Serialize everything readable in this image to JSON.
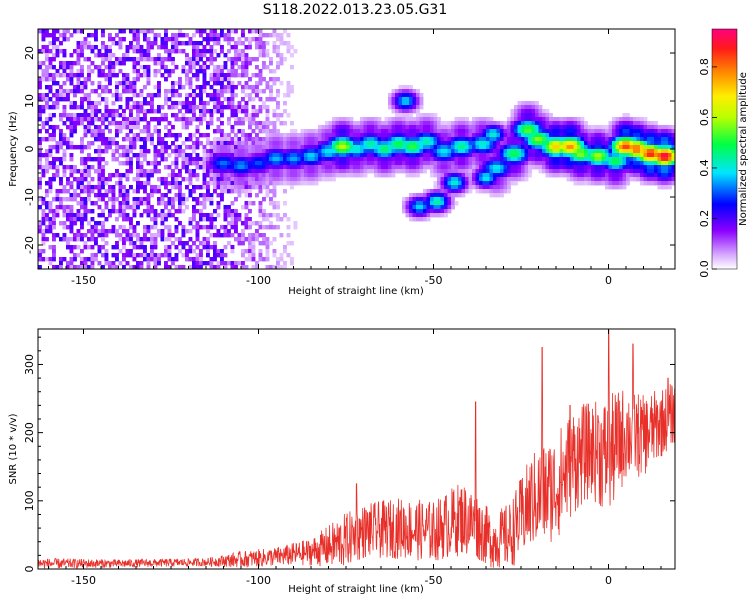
{
  "figure": {
    "title": "S118.2022.013.23.05.G31"
  },
  "colorbar": {
    "label": "Normalized spectral amplitude",
    "range": [
      0,
      0.95
    ],
    "ticks": [
      {
        "value": 0.0,
        "label": "0.0"
      },
      {
        "value": 0.2,
        "label": "0.2"
      },
      {
        "value": 0.4,
        "label": "0.4"
      },
      {
        "value": 0.6,
        "label": "0.6"
      },
      {
        "value": 0.8,
        "label": "0.8"
      }
    ],
    "colormap": "rainbow (white-violet-blue-cyan-green-yellow-orange-red-magenta)"
  },
  "chart_data": [
    {
      "type": "heatmap",
      "title": "",
      "xlabel": "Height of straight line (km)",
      "ylabel": "Frequency (Hz)",
      "xlim": [
        -163,
        19
      ],
      "ylim": [
        -25,
        25
      ],
      "x_ticks": [
        {
          "value": -150,
          "label": "-150"
        },
        {
          "value": -100,
          "label": "-100"
        },
        {
          "value": -50,
          "label": "-50"
        },
        {
          "value": 0,
          "label": "0"
        }
      ],
      "y_ticks": [
        {
          "value": -20,
          "label": "-20"
        },
        {
          "value": -10,
          "label": "-10"
        },
        {
          "value": 0,
          "label": "0"
        },
        {
          "value": 10,
          "label": "10"
        },
        {
          "value": 20,
          "label": "20"
        }
      ],
      "ridge": [
        {
          "x": -110,
          "f": -3.0,
          "a": 0.32
        },
        {
          "x": -105,
          "f": -3.5,
          "a": 0.34
        },
        {
          "x": -100,
          "f": -3.0,
          "a": 0.3
        },
        {
          "x": -95,
          "f": -2.0,
          "a": 0.36
        },
        {
          "x": -90,
          "f": -2.0,
          "a": 0.35
        },
        {
          "x": -85,
          "f": -1.5,
          "a": 0.38
        },
        {
          "x": -80,
          "f": -0.5,
          "a": 0.4
        },
        {
          "x": -76,
          "f": 0.5,
          "a": 0.62
        },
        {
          "x": -72,
          "f": 0.0,
          "a": 0.42
        },
        {
          "x": -68,
          "f": 1.0,
          "a": 0.45
        },
        {
          "x": -64,
          "f": 0.0,
          "a": 0.48
        },
        {
          "x": -60,
          "f": 1.0,
          "a": 0.5
        },
        {
          "x": -56,
          "f": 0.5,
          "a": 0.52
        },
        {
          "x": -52,
          "f": 1.5,
          "a": 0.44
        },
        {
          "x": -47,
          "f": -0.5,
          "a": 0.4
        },
        {
          "x": -42,
          "f": 0.5,
          "a": 0.46
        },
        {
          "x": -36,
          "f": 1.0,
          "a": 0.42
        },
        {
          "x": -32,
          "f": -4.0,
          "a": 0.4
        },
        {
          "x": -27,
          "f": -1.0,
          "a": 0.5
        },
        {
          "x": -23,
          "f": 4.0,
          "a": 0.55
        },
        {
          "x": -20,
          "f": 2.0,
          "a": 0.58
        },
        {
          "x": -15,
          "f": 0.5,
          "a": 0.72
        },
        {
          "x": -11,
          "f": 0.5,
          "a": 0.78
        },
        {
          "x": -8,
          "f": -1.0,
          "a": 0.58
        },
        {
          "x": -3,
          "f": -1.5,
          "a": 0.6
        },
        {
          "x": 2,
          "f": -2.5,
          "a": 0.5
        },
        {
          "x": 5,
          "f": 0.5,
          "a": 0.85
        },
        {
          "x": 8,
          "f": 0.0,
          "a": 0.82
        },
        {
          "x": 12,
          "f": -1.0,
          "a": 0.88
        },
        {
          "x": 16,
          "f": -1.5,
          "a": 0.93
        }
      ],
      "branches": [
        {
          "x": -58,
          "f": 10.0,
          "a": 0.38
        },
        {
          "x": -44,
          "f": -7.0,
          "a": 0.42
        },
        {
          "x": -49,
          "f": -11.0,
          "a": 0.45
        },
        {
          "x": -54,
          "f": -12.0,
          "a": 0.38
        },
        {
          "x": -35,
          "f": -6.0,
          "a": 0.4
        },
        {
          "x": -33,
          "f": 3.0,
          "a": 0.42
        }
      ],
      "noise_region": {
        "x_from": -163,
        "x_to": -100,
        "f_from": -25,
        "f_to": 25,
        "a": 0.12
      }
    },
    {
      "type": "line",
      "title": "",
      "xlabel": "Height of straight line (km)",
      "ylabel": "SNR (10 * v/v)",
      "xlim": [
        -163,
        19
      ],
      "ylim": [
        0,
        352
      ],
      "x_ticks": [
        {
          "value": -150,
          "label": "-150"
        },
        {
          "value": -100,
          "label": "-100"
        },
        {
          "value": -50,
          "label": "-50"
        },
        {
          "value": 0,
          "label": "0"
        }
      ],
      "y_ticks": [
        {
          "value": 0,
          "label": "0"
        },
        {
          "value": 100,
          "label": "100"
        },
        {
          "value": 200,
          "label": "200"
        },
        {
          "value": 300,
          "label": "300"
        }
      ],
      "color": "#e8302a",
      "envelope": [
        {
          "x": -163,
          "base": 8,
          "spread": 8
        },
        {
          "x": -140,
          "base": 8,
          "spread": 6
        },
        {
          "x": -115,
          "base": 10,
          "spread": 6
        },
        {
          "x": -105,
          "base": 14,
          "spread": 12
        },
        {
          "x": -95,
          "base": 18,
          "spread": 14
        },
        {
          "x": -85,
          "base": 25,
          "spread": 20
        },
        {
          "x": -76,
          "base": 40,
          "spread": 40
        },
        {
          "x": -70,
          "base": 55,
          "spread": 40
        },
        {
          "x": -60,
          "base": 60,
          "spread": 45
        },
        {
          "x": -50,
          "base": 55,
          "spread": 45
        },
        {
          "x": -42,
          "base": 75,
          "spread": 55
        },
        {
          "x": -38,
          "base": 65,
          "spread": 50
        },
        {
          "x": -33,
          "base": 40,
          "spread": 40
        },
        {
          "x": -28,
          "base": 50,
          "spread": 50
        },
        {
          "x": -22,
          "base": 100,
          "spread": 70
        },
        {
          "x": -15,
          "base": 120,
          "spread": 80
        },
        {
          "x": -10,
          "base": 160,
          "spread": 80
        },
        {
          "x": -5,
          "base": 175,
          "spread": 70
        },
        {
          "x": 0,
          "base": 165,
          "spread": 90
        },
        {
          "x": 5,
          "base": 200,
          "spread": 70
        },
        {
          "x": 10,
          "base": 195,
          "spread": 60
        },
        {
          "x": 19,
          "base": 230,
          "spread": 45
        }
      ],
      "peaks": [
        {
          "x": -72,
          "y": 125
        },
        {
          "x": -38,
          "y": 245
        },
        {
          "x": -19,
          "y": 325
        },
        {
          "x": -11,
          "y": 240
        },
        {
          "x": -3,
          "y": 225
        },
        {
          "x": 0,
          "y": 350
        },
        {
          "x": 7,
          "y": 330
        },
        {
          "x": 17,
          "y": 280
        }
      ]
    }
  ]
}
